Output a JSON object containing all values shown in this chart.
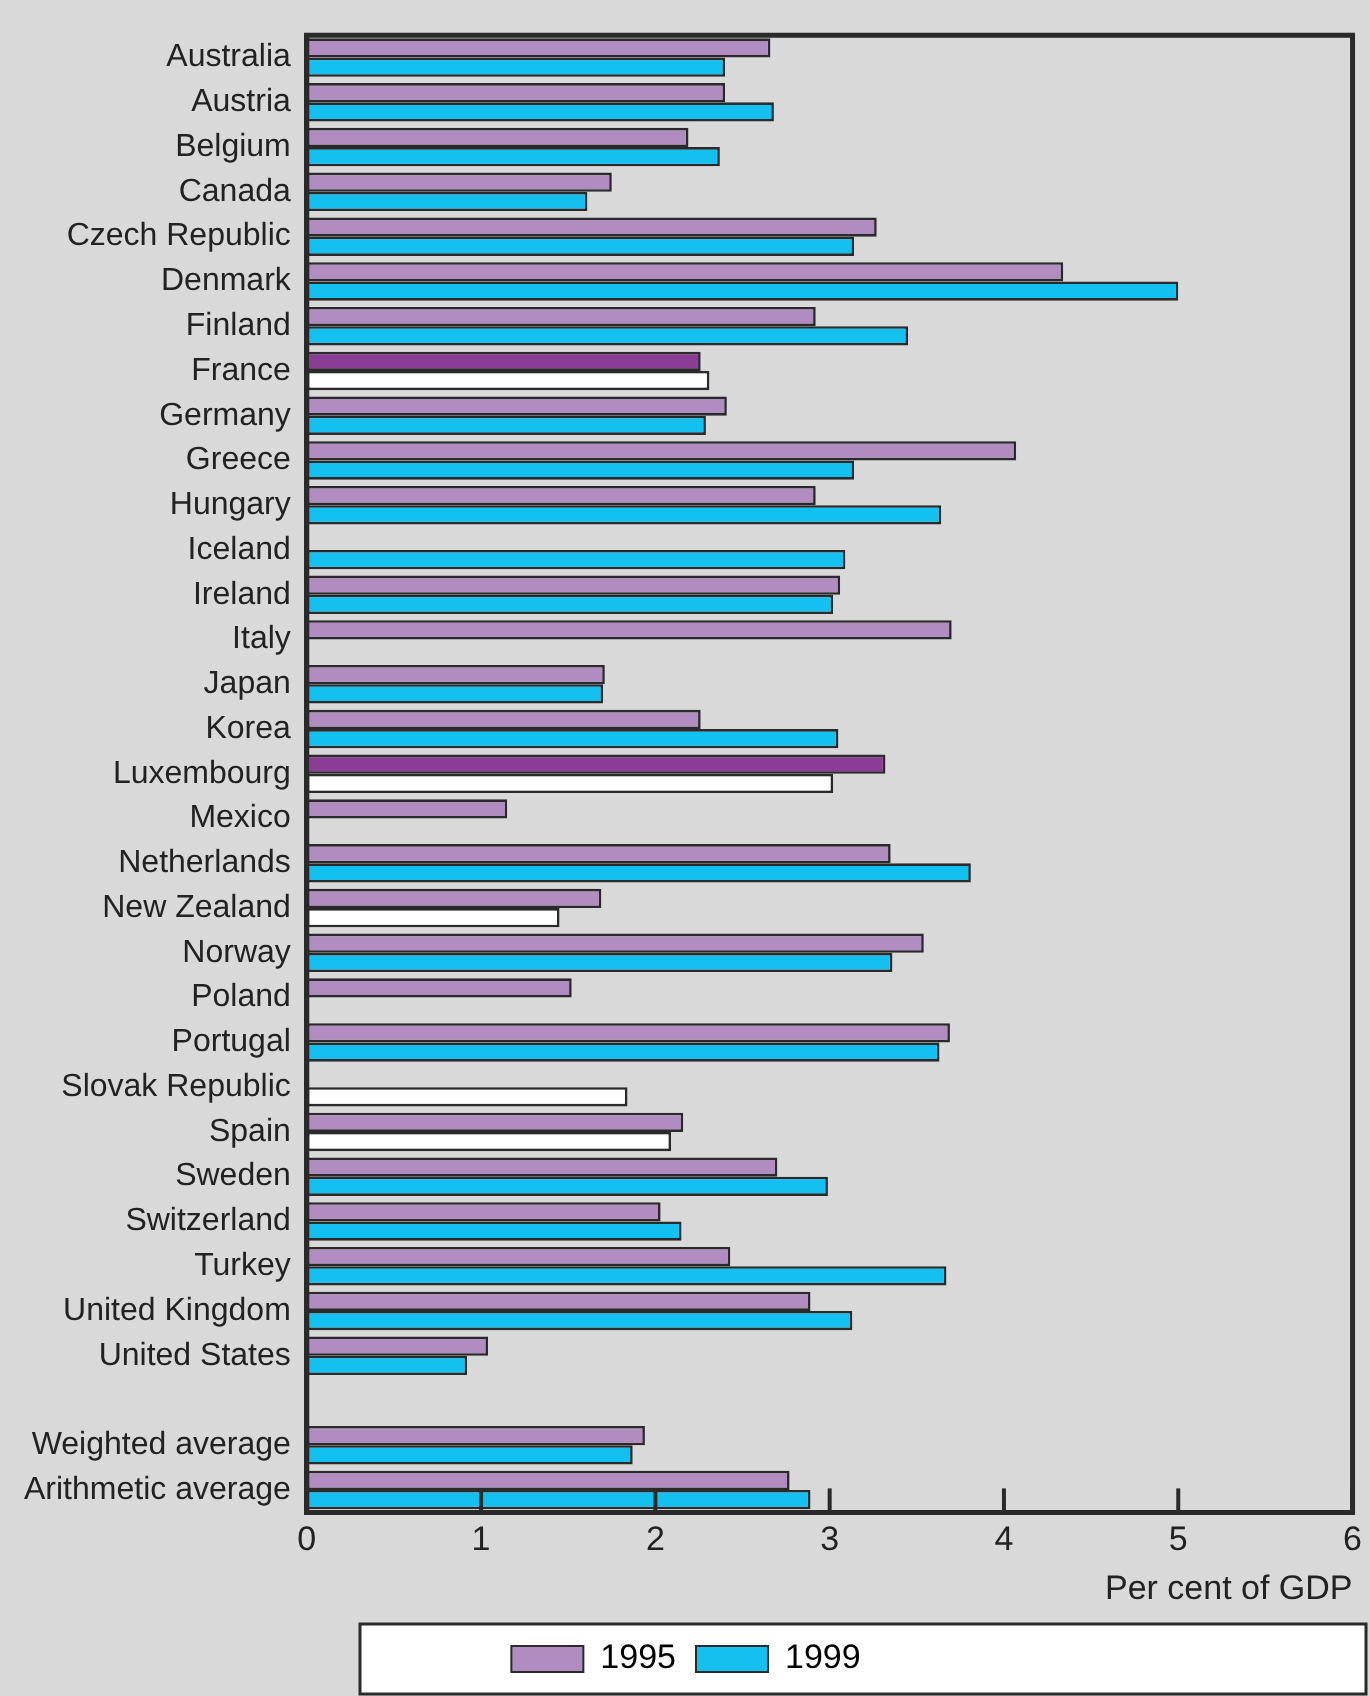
{
  "chart_data": {
    "type": "bar",
    "orientation": "horizontal",
    "xlabel": "Per cent of GDP",
    "categories": [
      "Australia",
      "Austria",
      "Belgium",
      "Canada",
      "Czech Republic",
      "Denmark",
      "Finland",
      "France",
      "Germany",
      "Greece",
      "Hungary",
      "Iceland",
      "Ireland",
      "Italy",
      "Japan",
      "Korea",
      "Luxembourg",
      "Mexico",
      "Netherlands",
      "New Zealand",
      "Norway",
      "Poland",
      "Portugal",
      "Slovak Republic",
      "Spain",
      "Sweden",
      "Switzerland",
      "Turkey",
      "United Kingdom",
      "United States",
      null,
      "Weighted average",
      "Arithmetic average"
    ],
    "series": [
      {
        "name": "1995",
        "color": "#b08cc0",
        "values": [
          2.66,
          2.4,
          2.19,
          1.75,
          3.27,
          4.34,
          2.92,
          2.26,
          2.41,
          4.07,
          2.92,
          null,
          3.06,
          3.7,
          1.71,
          2.26,
          3.32,
          1.15,
          3.35,
          1.69,
          3.54,
          1.52,
          3.69,
          null,
          2.16,
          2.7,
          2.03,
          2.43,
          2.89,
          1.04,
          null,
          1.94,
          2.77
        ],
        "colors": [
          "#b08cc0",
          "#b08cc0",
          "#b08cc0",
          "#b08cc0",
          "#b08cc0",
          "#b08cc0",
          "#b08cc0",
          "#8b3c94",
          "#b08cc0",
          "#b08cc0",
          "#b08cc0",
          "#b08cc0",
          "#b08cc0",
          "#b08cc0",
          "#b08cc0",
          "#b08cc0",
          "#8b3c94",
          "#b08cc0",
          "#b08cc0",
          "#b08cc0",
          "#b08cc0",
          "#b08cc0",
          "#b08cc0",
          "#b08cc0",
          "#b08cc0",
          "#b08cc0",
          "#b08cc0",
          "#b08cc0",
          "#b08cc0",
          "#b08cc0",
          "#b08cc0",
          "#b08cc0",
          "#b08cc0"
        ]
      },
      {
        "name": "1999",
        "color": "#14c0f0",
        "values": [
          2.4,
          2.68,
          2.37,
          1.61,
          3.14,
          5.0,
          3.45,
          2.31,
          2.29,
          3.14,
          3.64,
          3.09,
          3.02,
          null,
          1.7,
          3.05,
          3.02,
          null,
          3.81,
          1.45,
          3.36,
          null,
          3.63,
          1.84,
          2.09,
          2.99,
          2.15,
          3.67,
          3.13,
          0.92,
          null,
          1.87,
          2.89
        ],
        "colors": [
          "#14c0f0",
          "#14c0f0",
          "#14c0f0",
          "#14c0f0",
          "#14c0f0",
          "#14c0f0",
          "#14c0f0",
          "#ffffff",
          "#14c0f0",
          "#14c0f0",
          "#14c0f0",
          "#14c0f0",
          "#14c0f0",
          "#14c0f0",
          "#14c0f0",
          "#14c0f0",
          "#ffffff",
          "#14c0f0",
          "#14c0f0",
          "#ffffff",
          "#14c0f0",
          "#14c0f0",
          "#14c0f0",
          "#ffffff",
          "#ffffff",
          "#14c0f0",
          "#14c0f0",
          "#14c0f0",
          "#14c0f0",
          "#14c0f0",
          "#14c0f0",
          "#14c0f0",
          "#14c0f0"
        ]
      }
    ],
    "xlim": [
      0,
      6
    ],
    "xticks": [
      0,
      1,
      2,
      3,
      4,
      5,
      6
    ],
    "grid": false,
    "legend": "bottom"
  }
}
